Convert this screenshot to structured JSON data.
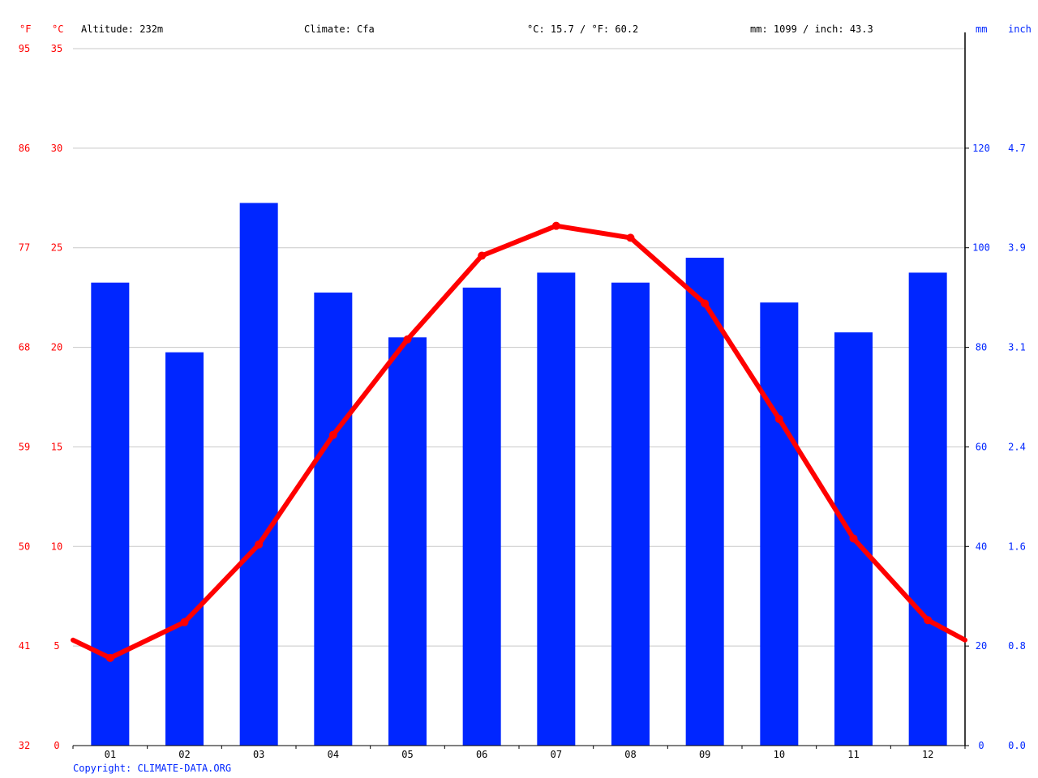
{
  "header": {
    "unit_f": "°F",
    "unit_c": "°C",
    "altitude": "Altitude: 232m",
    "climate": "Climate: Cfa",
    "temperature": "°C: 15.7 / °F: 60.2",
    "precipitation": "mm: 1099 / inch: 43.3",
    "unit_mm": "mm",
    "unit_inch": "inch"
  },
  "copyright": "Copyright: CLIMATE-DATA.ORG",
  "colors": {
    "temperature": "#ff0000",
    "precipitation": "#0026ff",
    "grid": "#c8c8c8",
    "axis": "#000000"
  },
  "chart_data": {
    "type": "bar",
    "categories": [
      "01",
      "02",
      "03",
      "04",
      "05",
      "06",
      "07",
      "08",
      "09",
      "10",
      "11",
      "12"
    ],
    "series": [
      {
        "type": "bar",
        "axis": "right",
        "unit": "mm",
        "values": [
          93,
          79,
          109,
          91,
          82,
          92,
          95,
          93,
          98,
          89,
          83,
          95
        ]
      },
      {
        "type": "line",
        "axis": "left",
        "unit": "°C",
        "values": [
          4.4,
          6.2,
          10.1,
          15.6,
          20.4,
          24.6,
          26.1,
          25.5,
          22.2,
          16.4,
          10.4,
          6.3
        ],
        "start_value": 5.3,
        "end_value": 5.3
      }
    ],
    "ylim_c": [
      0,
      35
    ],
    "yticks_c": [
      0,
      5,
      10,
      15,
      20,
      25,
      30,
      35
    ],
    "yticks_f": [
      "32",
      "41",
      "50",
      "59",
      "68",
      "77",
      "86",
      "95"
    ],
    "ylim_mm": [
      0,
      140
    ],
    "yticks_mm": [
      0,
      20,
      40,
      60,
      80,
      100,
      120
    ],
    "yticks_inch": [
      "0.0",
      "0.8",
      "1.6",
      "2.4",
      "3.1",
      "3.9",
      "4.7"
    ],
    "grid": true
  }
}
